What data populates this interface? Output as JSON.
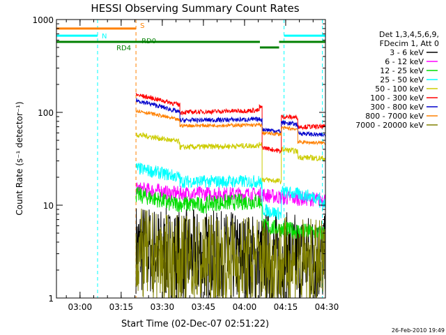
{
  "chart_data": {
    "type": "line",
    "title": "HESSI Observing Summary Count Rates",
    "xlabel": "Start Time (02-Dec-07 02:51:22)",
    "ylabel": "Count Rate (s⁻¹ detector⁻¹)",
    "footer": "26-Feb-2010 19:49",
    "x_start": "02:51:22",
    "x_end": "04:29:30",
    "xlim_minutes": [
      0,
      98.1
    ],
    "ylim": [
      1,
      1000
    ],
    "log_y": true,
    "x_ticks": [
      {
        "label": "03:00",
        "t": 8.6
      },
      {
        "label": "03:15",
        "t": 23.6
      },
      {
        "label": "03:30",
        "t": 38.6
      },
      {
        "label": "03:45",
        "t": 53.6
      },
      {
        "label": "04:00",
        "t": 68.6
      },
      {
        "label": "04:15",
        "t": 83.6
      },
      {
        "label": "04:30",
        "t": 98.6
      }
    ],
    "y_ticks": [
      {
        "label": "1",
        "v": 1
      },
      {
        "label": "10",
        "v": 10
      },
      {
        "label": "100",
        "v": 100
      },
      {
        "label": "1000",
        "v": 1000
      }
    ],
    "legend_header": [
      "Det 1,3,4,5,6,9,",
      "FDecim 1, Att 0"
    ],
    "series": [
      {
        "name": "3 - 6 keV",
        "color": "#000000",
        "segments": [
          [
            29,
            3.5,
            3.0
          ],
          [
            40,
            3.0,
            2.6
          ],
          [
            75,
            2.8,
            2.6
          ],
          [
            83,
            2.7,
            2.6
          ]
        ],
        "noise": 0.5
      },
      {
        "name": "6 - 12 keV",
        "color": "#ff00ff",
        "segments": [
          [
            29,
            15.0,
            14.0
          ],
          [
            40,
            13.5,
            13.0
          ],
          [
            75,
            13.0,
            12.0
          ],
          [
            83,
            12.0,
            11.5
          ],
          [
            96,
            11.5,
            11.5
          ]
        ],
        "noise": 0.08
      },
      {
        "name": "12 - 25 keV",
        "color": "#00dd00",
        "segments": [
          [
            29,
            13.0,
            11.0
          ],
          [
            40,
            10.5,
            10.0
          ],
          [
            55,
            10.5,
            11.0
          ],
          [
            74,
            11.0,
            11.0
          ],
          [
            75,
            6.0,
            5.5
          ],
          [
            82,
            5.5,
            5.0
          ],
          [
            96,
            5.0,
            5.0
          ]
        ],
        "noise": 0.09
      },
      {
        "name": "25 - 50 keV",
        "color": "#00ffff",
        "segments": [
          [
            29,
            25.0,
            20.0
          ],
          [
            45,
            18.0,
            18.0
          ],
          [
            74,
            18.0,
            17.0
          ],
          [
            75,
            9.0,
            8.0
          ],
          [
            82,
            14.0,
            12.0
          ],
          [
            96,
            10.5,
            10.5
          ]
        ],
        "noise": 0.07
      },
      {
        "name": "50 - 100 keV",
        "color": "#cccc00",
        "segments": [
          [
            29,
            58.0,
            48.0
          ],
          [
            45,
            42.0,
            44.0
          ],
          [
            74,
            46.0,
            46.0
          ],
          [
            75,
            19.0,
            18.0
          ],
          [
            82,
            40.0,
            38.0
          ],
          [
            88,
            33.0,
            32.0
          ],
          [
            96,
            32.0,
            32.0
          ]
        ],
        "noise": 0.03
      },
      {
        "name": "100 - 300 keV",
        "color": "#ff0000",
        "segments": [
          [
            29,
            155.0,
            120.0
          ],
          [
            45,
            100.0,
            105.0
          ],
          [
            74,
            115.0,
            112.0
          ],
          [
            75,
            42.0,
            38.0
          ],
          [
            82,
            90.0,
            88.0
          ],
          [
            88,
            70.0,
            70.0
          ],
          [
            96,
            70.0,
            70.0
          ]
        ],
        "noise": 0.025
      },
      {
        "name": "300 - 800 keV",
        "color": "#0000cc",
        "segments": [
          [
            29,
            135.0,
            100.0
          ],
          [
            45,
            82.0,
            84.0
          ],
          [
            74,
            85.0,
            83.0
          ],
          [
            75,
            66.0,
            62.0
          ],
          [
            82,
            78.0,
            74.0
          ],
          [
            88,
            60.0,
            57.0
          ],
          [
            96,
            57.0,
            57.0
          ]
        ],
        "noise": 0.025
      },
      {
        "name": "800 - 7000 keV",
        "color": "#ff8000",
        "segments": [
          [
            29,
            105.0,
            82.0
          ],
          [
            45,
            72.0,
            73.0
          ],
          [
            74,
            74.0,
            72.0
          ],
          [
            75,
            60.0,
            58.0
          ],
          [
            82,
            68.0,
            66.0
          ],
          [
            88,
            48.0,
            47.0
          ],
          [
            96,
            47.0,
            47.0
          ]
        ],
        "noise": 0.02
      },
      {
        "name": "7000 - 20000 keV",
        "color": "#808000",
        "segments": [
          [
            29,
            3.0,
            2.5
          ],
          [
            40,
            2.5,
            2.5
          ],
          [
            75,
            2.5,
            2.4
          ],
          [
            83,
            2.4,
            2.2
          ]
        ],
        "noise": 0.5
      }
    ],
    "flag_bars": [
      {
        "label": "S",
        "color": "#ff8000",
        "segments": [
          [
            0,
            800,
            29,
            800
          ]
        ]
      },
      {
        "label": "N",
        "color": "#00ffff",
        "segments": [
          [
            0,
            670,
            15,
            670
          ],
          [
            83,
            670,
            98.1,
            670
          ]
        ]
      },
      {
        "label": "RD0",
        "color": "#008000",
        "segments": [
          [
            0,
            575,
            74.2,
            575
          ],
          [
            74.2,
            500,
            81.2,
            500
          ],
          [
            81.2,
            575,
            98.1,
            575
          ]
        ]
      },
      {
        "label": "RD4",
        "color": "#008000",
        "segments": []
      }
    ],
    "vlines": [
      {
        "t": 15.0,
        "color": "#00ffff"
      },
      {
        "t": 29.0,
        "color": "#ff8000"
      },
      {
        "t": 83.0,
        "color": "#00ffff"
      },
      {
        "t": 97.0,
        "color": "#00ffff"
      }
    ]
  }
}
